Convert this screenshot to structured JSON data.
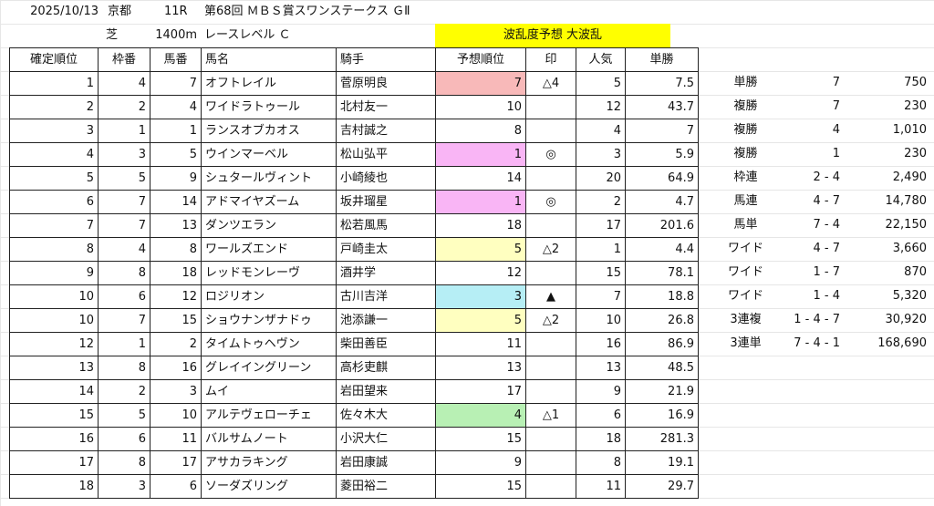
{
  "header": {
    "date": "2025/10/13",
    "venue": "京都",
    "race_no": "11R",
    "race_name": "第68回 ＭＢＳ賞スワンステークス ＧⅡ",
    "surface": "芝",
    "distance": "1400m",
    "race_level": "レースレベル Ｃ",
    "upset_label": "波乱度予想 大波乱"
  },
  "columns": [
    "確定順位",
    "枠番",
    "馬番",
    "馬名",
    "騎手",
    "予想順位",
    "印",
    "人気",
    "単勝"
  ],
  "rows": [
    {
      "rank": "1",
      "waku": "4",
      "uma": "7",
      "name": "オフトレイル",
      "jockey": "菅原明良",
      "pred": "7",
      "mark": "△4",
      "pop": "5",
      "odds": "7.5",
      "color": "red"
    },
    {
      "rank": "2",
      "waku": "2",
      "uma": "4",
      "name": "ワイドラトゥール",
      "jockey": "北村友一",
      "pred": "10",
      "mark": "",
      "pop": "12",
      "odds": "43.7",
      "color": ""
    },
    {
      "rank": "3",
      "waku": "1",
      "uma": "1",
      "name": "ランスオブカオス",
      "jockey": "吉村誠之",
      "pred": "8",
      "mark": "",
      "pop": "4",
      "odds": "7",
      "color": ""
    },
    {
      "rank": "4",
      "waku": "3",
      "uma": "5",
      "name": "ウインマーベル",
      "jockey": "松山弘平",
      "pred": "1",
      "mark": "◎",
      "pop": "3",
      "odds": "5.9",
      "color": "pink"
    },
    {
      "rank": "5",
      "waku": "5",
      "uma": "9",
      "name": "シュタールヴィント",
      "jockey": "小崎綾也",
      "pred": "14",
      "mark": "",
      "pop": "20",
      "odds": "64.9",
      "color": ""
    },
    {
      "rank": "6",
      "waku": "7",
      "uma": "14",
      "name": "アドマイヤズーム",
      "jockey": "坂井瑠星",
      "pred": "1",
      "mark": "◎",
      "pop": "2",
      "odds": "4.7",
      "color": "pink"
    },
    {
      "rank": "7",
      "waku": "7",
      "uma": "13",
      "name": "ダンツエラン",
      "jockey": "松若風馬",
      "pred": "18",
      "mark": "",
      "pop": "17",
      "odds": "201.6",
      "color": ""
    },
    {
      "rank": "8",
      "waku": "4",
      "uma": "8",
      "name": "ワールズエンド",
      "jockey": "戸崎圭太",
      "pred": "5",
      "mark": "△2",
      "pop": "1",
      "odds": "4.4",
      "color": "yellow"
    },
    {
      "rank": "9",
      "waku": "8",
      "uma": "18",
      "name": "レッドモンレーヴ",
      "jockey": "酒井学",
      "pred": "12",
      "mark": "",
      "pop": "15",
      "odds": "78.1",
      "color": ""
    },
    {
      "rank": "10",
      "waku": "6",
      "uma": "12",
      "name": "ロジリオン",
      "jockey": "古川吉洋",
      "pred": "3",
      "mark": "▲",
      "pop": "7",
      "odds": "18.8",
      "color": "cyan"
    },
    {
      "rank": "10",
      "waku": "7",
      "uma": "15",
      "name": "ショウナンザナドゥ",
      "jockey": "池添謙一",
      "pred": "5",
      "mark": "△2",
      "pop": "10",
      "odds": "26.8",
      "color": "yellow"
    },
    {
      "rank": "12",
      "waku": "1",
      "uma": "2",
      "name": "タイムトゥヘヴン",
      "jockey": "柴田善臣",
      "pred": "11",
      "mark": "",
      "pop": "16",
      "odds": "86.9",
      "color": ""
    },
    {
      "rank": "13",
      "waku": "8",
      "uma": "16",
      "name": "グレイイングリーン",
      "jockey": "高杉吏麒",
      "pred": "13",
      "mark": "",
      "pop": "13",
      "odds": "48.5",
      "color": ""
    },
    {
      "rank": "14",
      "waku": "2",
      "uma": "3",
      "name": "ムイ",
      "jockey": "岩田望来",
      "pred": "17",
      "mark": "",
      "pop": "9",
      "odds": "21.9",
      "color": ""
    },
    {
      "rank": "15",
      "waku": "5",
      "uma": "10",
      "name": "アルテヴェローチェ",
      "jockey": "佐々木大",
      "pred": "4",
      "mark": "△1",
      "pop": "6",
      "odds": "16.9",
      "color": "green"
    },
    {
      "rank": "16",
      "waku": "6",
      "uma": "11",
      "name": "バルサムノート",
      "jockey": "小沢大仁",
      "pred": "15",
      "mark": "",
      "pop": "18",
      "odds": "281.3",
      "color": ""
    },
    {
      "rank": "17",
      "waku": "8",
      "uma": "17",
      "name": "アサカラキング",
      "jockey": "岩田康誠",
      "pred": "9",
      "mark": "",
      "pop": "8",
      "odds": "19.1",
      "color": ""
    },
    {
      "rank": "18",
      "waku": "3",
      "uma": "6",
      "name": "ソーダズリング",
      "jockey": "菱田裕二",
      "pred": "15",
      "mark": "",
      "pop": "11",
      "odds": "29.7",
      "color": ""
    }
  ],
  "payouts": [
    {
      "type": "単勝",
      "combo": "7",
      "amount": "750"
    },
    {
      "type": "複勝",
      "combo": "7",
      "amount": "230"
    },
    {
      "type": "複勝",
      "combo": "4",
      "amount": "1,010"
    },
    {
      "type": "複勝",
      "combo": "1",
      "amount": "230"
    },
    {
      "type": "枠連",
      "combo": "2 - 4",
      "amount": "2,490"
    },
    {
      "type": "馬連",
      "combo": "4 - 7",
      "amount": "14,780"
    },
    {
      "type": "馬単",
      "combo": "7 - 4",
      "amount": "22,150"
    },
    {
      "type": "ワイド",
      "combo": "4 - 7",
      "amount": "3,660"
    },
    {
      "type": "ワイド",
      "combo": "1 - 7",
      "amount": "870"
    },
    {
      "type": "ワイド",
      "combo": "1 - 4",
      "amount": "5,320"
    },
    {
      "type": "3連複",
      "combo": "1 - 4 - 7",
      "amount": "30,920"
    },
    {
      "type": "3連単",
      "combo": "7 - 4 - 1",
      "amount": "168,690"
    }
  ],
  "colors": {
    "red": "#f8b9b9",
    "pink": "#f9b5f5",
    "yellow": "#ffffc0",
    "cyan": "#b6eef5",
    "green": "#b8f0b4",
    "header_highlight": "#ffff00"
  }
}
